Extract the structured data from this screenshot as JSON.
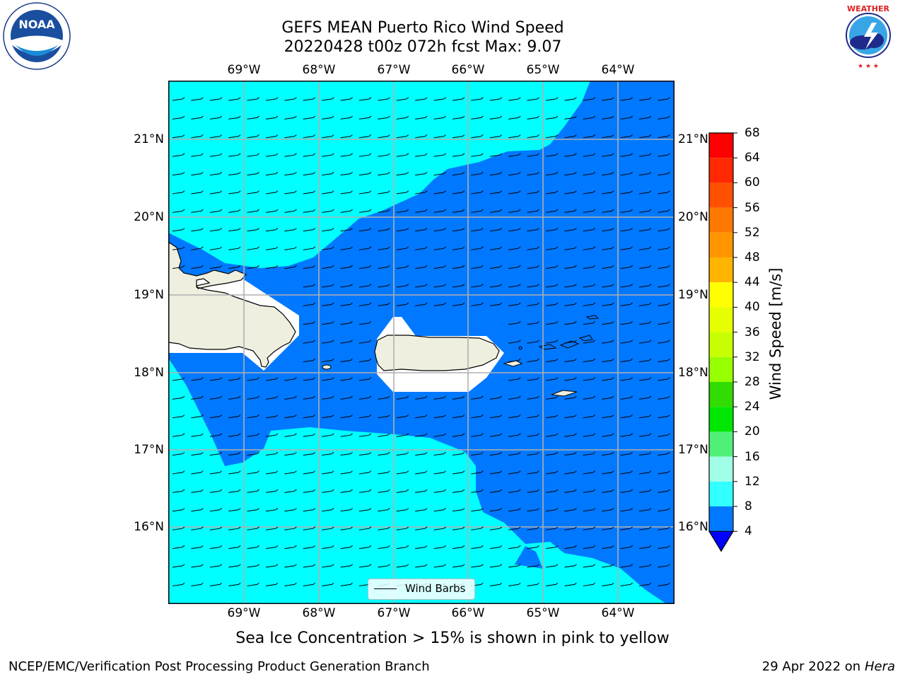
{
  "header": {
    "title_line1": "GEFS MEAN Puerto Rico Wind Speed",
    "title_line2": "20220428 t00z 072h fcst   Max: 9.07"
  },
  "logos": {
    "left": "NOAA",
    "right": "NATIONAL WEATHER SERVICE"
  },
  "axes": {
    "lon_labels": [
      "69°W",
      "68°W",
      "67°W",
      "66°W",
      "65°W",
      "64°W"
    ],
    "lat_labels": [
      "21°N",
      "20°N",
      "19°N",
      "18°N",
      "17°N",
      "16°N"
    ]
  },
  "colorbar": {
    "title": "Wind Speed [m/s]",
    "ticks": [
      "68",
      "64",
      "60",
      "56",
      "52",
      "48",
      "44",
      "40",
      "36",
      "32",
      "28",
      "24",
      "20",
      "16",
      "12",
      "8",
      "4"
    ],
    "colors": [
      "#ff0000",
      "#ff2800",
      "#ff5000",
      "#ff7800",
      "#ff9600",
      "#ffb400",
      "#ffd200",
      "#ffff00",
      "#e6ff00",
      "#c8ff00",
      "#96ff00",
      "#32dc00",
      "#00e600",
      "#2ee63c",
      "#50f078",
      "#a0ffe6",
      "#64ffff",
      "#32ffff",
      "#00ffff",
      "#0078ff"
    ],
    "extend_color": "#0000ff"
  },
  "map": {
    "field_colors": {
      "low": "#00ffff",
      "mid": "#0078ff",
      "land": "#efefe0"
    },
    "legend_label": "Wind Barbs"
  },
  "notes": {
    "sea_ice": "Sea Ice Concentration > 15% is shown in pink to yellow"
  },
  "footer": {
    "left": "NCEP/EMC/Verification Post Processing Product Generation Branch",
    "right_date": "29 Apr 2022 on",
    "right_system": "Hera"
  }
}
